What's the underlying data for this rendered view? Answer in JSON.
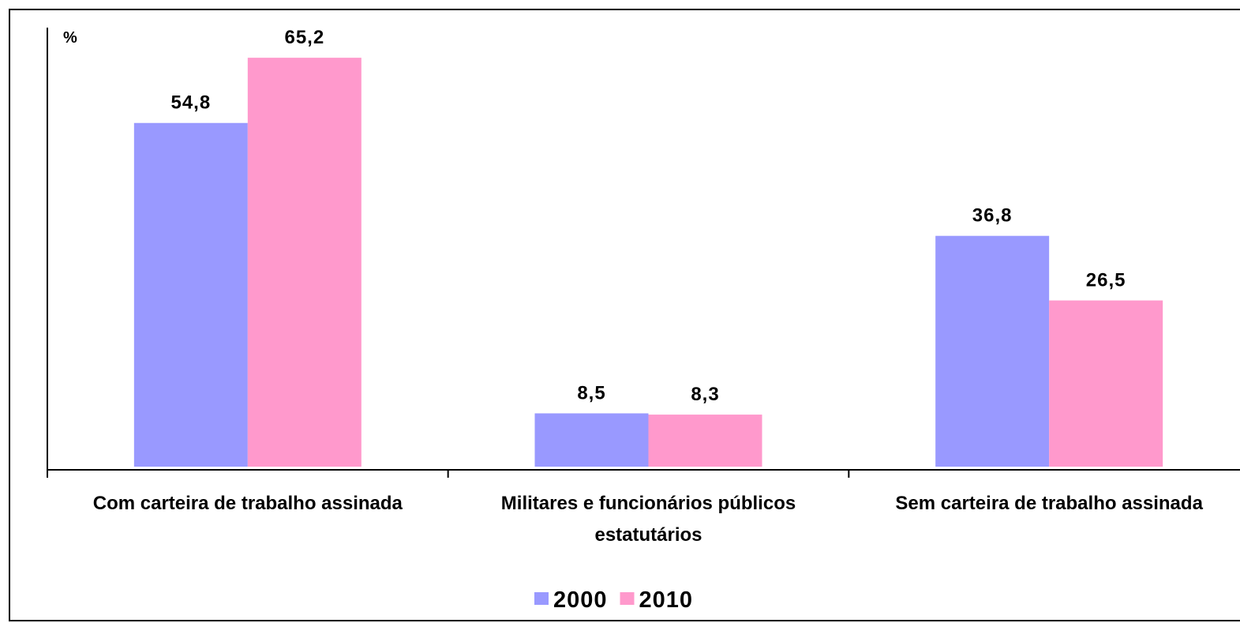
{
  "chart_data": {
    "type": "bar",
    "y_label": "%",
    "categories": [
      "Com carteira de trabalho assinada",
      "Militares e funcionários públicos estatutários",
      "Sem carteira de trabalho assinada"
    ],
    "series": [
      {
        "name": "2000",
        "color": "#9999ff",
        "values": [
          54.8,
          8.5,
          36.8
        ],
        "value_labels": [
          "54,8",
          "8,5",
          "36,8"
        ]
      },
      {
        "name": "2010",
        "color": "#ff99cc",
        "values": [
          65.2,
          8.3,
          26.5
        ],
        "value_labels": [
          "65,2",
          "8,3",
          "26,5"
        ]
      }
    ],
    "ylim": [
      0,
      70
    ]
  }
}
